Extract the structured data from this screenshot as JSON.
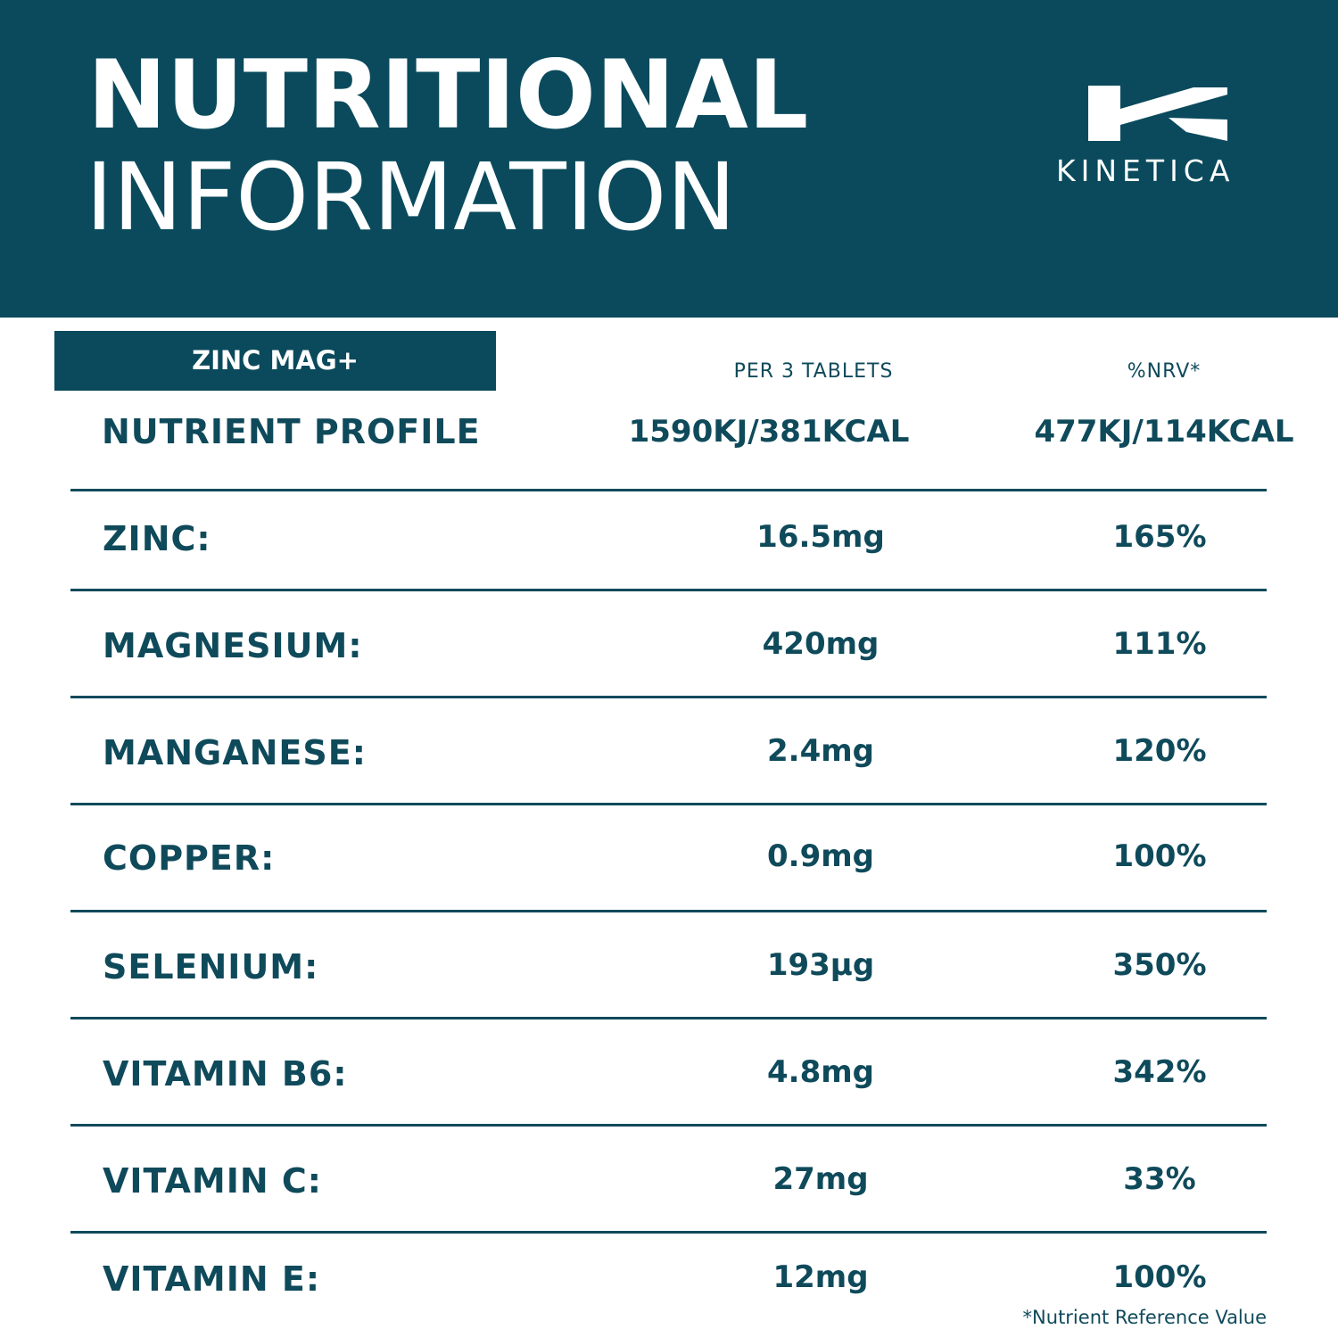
{
  "header": {
    "title_line1": "NUTRITIONAL",
    "title_line2": "INFORMATION",
    "brand": "KINETICA",
    "logo_icon": "kinetica-k-logo-icon"
  },
  "colors": {
    "primary": "#0a4a5c",
    "text": "#0f4a5b",
    "background": "#ffffff"
  },
  "table": {
    "product": "ZINC MAG+",
    "col_per": "PER 3 TABLETS",
    "col_nrv": "%NRV*",
    "profile": {
      "label": "NUTRIENT PROFILE",
      "per": "1590KJ/381KCAL",
      "nrv": "477KJ/114KCAL"
    },
    "rows": [
      {
        "label": "ZINC:",
        "per": "16.5mg",
        "nrv": "165%"
      },
      {
        "label": "MAGNESIUM:",
        "per": "420mg",
        "nrv": "111%"
      },
      {
        "label": "MANGANESE:",
        "per": "2.4mg",
        "nrv": "120%"
      },
      {
        "label": "COPPER:",
        "per": "0.9mg",
        "nrv": "100%"
      },
      {
        "label": "SELENIUM:",
        "per": "193µg",
        "nrv": "350%"
      },
      {
        "label": "VITAMIN B6:",
        "per": "4.8mg",
        "nrv": "342%"
      },
      {
        "label": "VITAMIN C:",
        "per": "27mg",
        "nrv": "33%"
      },
      {
        "label": "VITAMIN E:",
        "per": "12mg",
        "nrv": "100%"
      }
    ],
    "footnote": "*Nutrient Reference Value"
  }
}
